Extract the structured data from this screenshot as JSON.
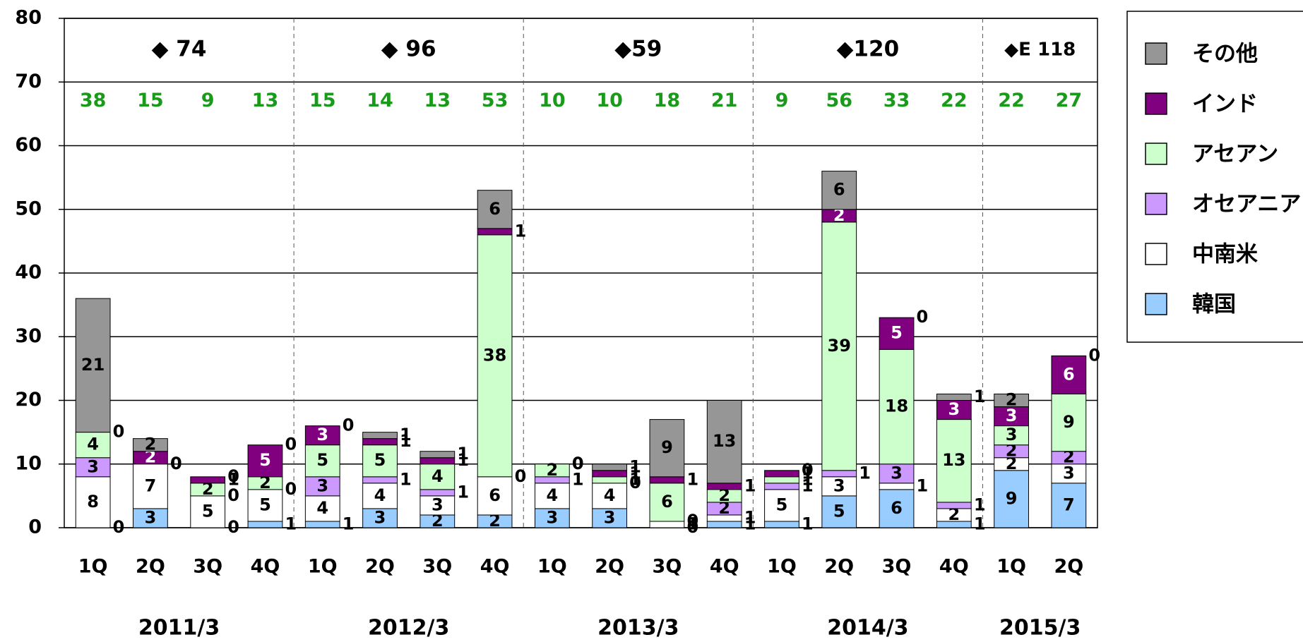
{
  "chart_data": {
    "type": "stacked_bar",
    "categories": [
      "1Q",
      "2Q",
      "3Q",
      "4Q",
      "1Q",
      "2Q",
      "3Q",
      "4Q",
      "1Q",
      "2Q",
      "3Q",
      "4Q",
      "1Q",
      "2Q",
      "3Q",
      "4Q",
      "1Q",
      "2Q"
    ],
    "year_labels": [
      "2011/3",
      "2012/3",
      "2013/3",
      "2014/3",
      "2015/3"
    ],
    "year_annotations": [
      "◆ 74",
      "◆ 96",
      "◆59",
      "◆120",
      "◆E 118"
    ],
    "totals": [
      38,
      15,
      9,
      13,
      15,
      14,
      13,
      53,
      10,
      10,
      18,
      21,
      9,
      56,
      33,
      22,
      22,
      27
    ],
    "series": [
      {
        "name": "韓国",
        "color": "#99ccff",
        "values": [
          0,
          3,
          0,
          1,
          1,
          3,
          2,
          2,
          3,
          3,
          0,
          1,
          1,
          5,
          6,
          1,
          9,
          7
        ]
      },
      {
        "name": "中南米",
        "color": "#ffffff",
        "values": [
          8,
          7,
          5,
          5,
          4,
          4,
          3,
          6,
          4,
          4,
          1,
          1,
          5,
          3,
          1,
          2,
          2,
          3
        ]
      },
      {
        "name": "オセアニア",
        "color": "#cc99ff",
        "values": [
          3,
          0,
          0,
          0,
          3,
          1,
          1,
          0,
          1,
          0,
          0,
          2,
          1,
          1,
          3,
          1,
          2,
          2
        ]
      },
      {
        "name": "アセアン",
        "color": "#ccffcc",
        "values": [
          4,
          0,
          2,
          2,
          5,
          5,
          4,
          38,
          2,
          1,
          6,
          2,
          1,
          39,
          18,
          13,
          3,
          9
        ]
      },
      {
        "name": "インド",
        "color": "#800080",
        "values": [
          0,
          2,
          1,
          5,
          3,
          1,
          1,
          1,
          0,
          1,
          1,
          1,
          1,
          2,
          5,
          3,
          3,
          6
        ]
      },
      {
        "name": "その他",
        "color": "#969696",
        "values": [
          21,
          2,
          0,
          0,
          0,
          1,
          1,
          6,
          0,
          1,
          9,
          13,
          0,
          6,
          0,
          1,
          2,
          0
        ]
      }
    ],
    "ylim": [
      0,
      80
    ],
    "yticks": [
      0,
      10,
      20,
      30,
      40,
      50,
      60,
      70,
      80
    ],
    "grid": true
  }
}
